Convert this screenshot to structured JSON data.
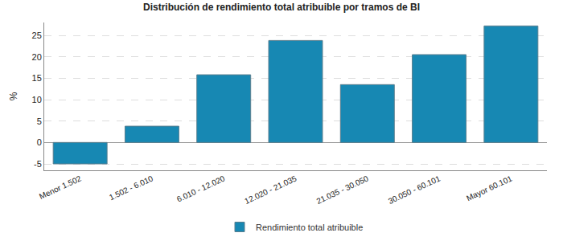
{
  "chart_data": {
    "type": "bar",
    "title": "Distribución de rendimiento total atribuible por tramos de BI",
    "y_label": "%",
    "categories": [
      "Menor 1.502",
      "1.502 - 6.010",
      "6.010 - 12.020",
      "12.020 - 21.035",
      "21.035 - 30.050",
      "30.050 - 60.101",
      "Mayor 60.101"
    ],
    "series": [
      {
        "name": "Rendimiento total atribuible",
        "color": "#1788b3",
        "values": [
          -5.0,
          3.8,
          15.8,
          23.8,
          13.5,
          20.5,
          27.2
        ]
      }
    ],
    "ylim": [
      -6.5,
      28
    ],
    "yticks": [
      -5,
      0,
      5,
      10,
      15,
      20,
      25
    ],
    "grid": true,
    "legend": "bottom"
  }
}
